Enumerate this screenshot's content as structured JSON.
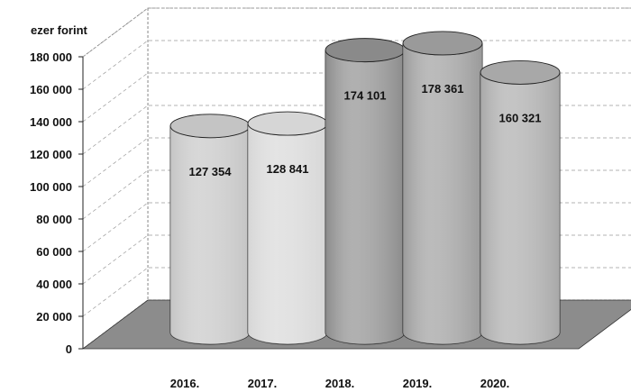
{
  "chart_data": {
    "type": "bar",
    "style": "3d-cylinder",
    "title": "",
    "unit_label": "ezer forint",
    "categories": [
      "2016.",
      "2017.",
      "2018.",
      "2019.",
      "2020."
    ],
    "values": [
      127354,
      128841,
      174101,
      178361,
      160321
    ],
    "value_labels": [
      "127 354",
      "128 841",
      "174 101",
      "178 361",
      "160 321"
    ],
    "ylim": [
      0,
      180000
    ],
    "yticks": [
      0,
      20000,
      40000,
      60000,
      80000,
      100000,
      120000,
      140000,
      160000,
      180000
    ],
    "ytick_labels": [
      "0",
      "20 000",
      "40 000",
      "60 000",
      "80 000",
      "100 000",
      "120 000",
      "140 000",
      "160 000",
      "180 000"
    ],
    "grid": true,
    "legend": "none",
    "colors": [
      "#c4c4c4",
      "#d6d6d6",
      "#8a8a8a",
      "#9a9a9a",
      "#a8a8a8"
    ]
  }
}
